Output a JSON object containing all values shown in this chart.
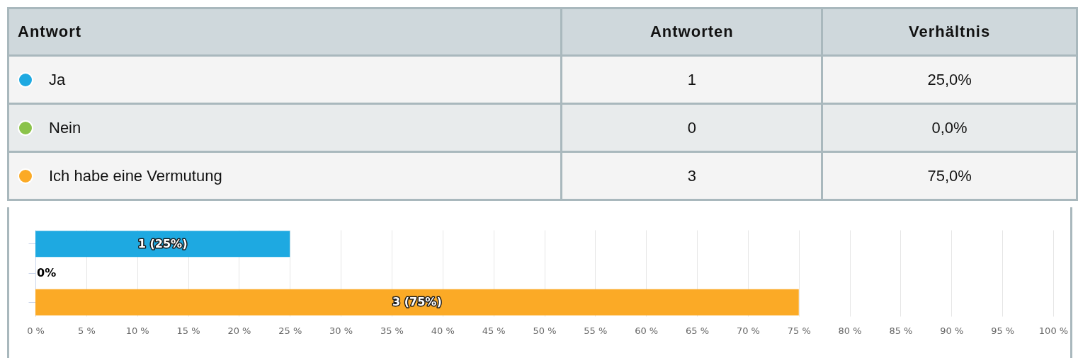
{
  "chart_data": [
    {
      "type": "other",
      "ylabel": "Antwort",
      "categories": [
        "Antworten",
        "Verhältnis"
      ],
      "y_categories": [
        "Ja",
        "Nein",
        "Ich habe eine Vermutung"
      ],
      "cell_labels": [
        [
          "1",
          "25,0%"
        ],
        [
          "0",
          "0,0%"
        ],
        [
          "3",
          "75,0%"
        ]
      ]
    },
    {
      "type": "bar",
      "orientation": "horizontal",
      "categories": [
        null,
        null,
        null
      ],
      "values": [
        25,
        0,
        75
      ],
      "colors": [
        "#1ea9e1",
        "#8bc34a",
        "#fbaa26"
      ],
      "value_labels": [
        "1 (25%)",
        "0%",
        "3 (75%)"
      ],
      "xlim": [
        0,
        100
      ],
      "xticks": [
        {
          "value": 0,
          "label": "0 %"
        },
        {
          "value": 5,
          "label": "5 %"
        },
        {
          "value": 10,
          "label": "10 %"
        },
        {
          "value": 15,
          "label": "15 %"
        },
        {
          "value": 20,
          "label": "20 %"
        },
        {
          "value": 25,
          "label": "25 %"
        },
        {
          "value": 30,
          "label": "30 %"
        },
        {
          "value": 35,
          "label": "35 %"
        },
        {
          "value": 40,
          "label": "40 %"
        },
        {
          "value": 45,
          "label": "45 %"
        },
        {
          "value": 50,
          "label": "50 %"
        },
        {
          "value": 55,
          "label": "55 %"
        },
        {
          "value": 60,
          "label": "60 %"
        },
        {
          "value": 65,
          "label": "65 %"
        },
        {
          "value": 70,
          "label": "70 %"
        },
        {
          "value": 75,
          "label": "75 %"
        },
        {
          "value": 80,
          "label": "80 %"
        },
        {
          "value": 85,
          "label": "85 %"
        },
        {
          "value": 90,
          "label": "90 %"
        },
        {
          "value": 95,
          "label": "95 %"
        },
        {
          "value": 100,
          "label": "100 %"
        }
      ],
      "grid": "x"
    }
  ]
}
